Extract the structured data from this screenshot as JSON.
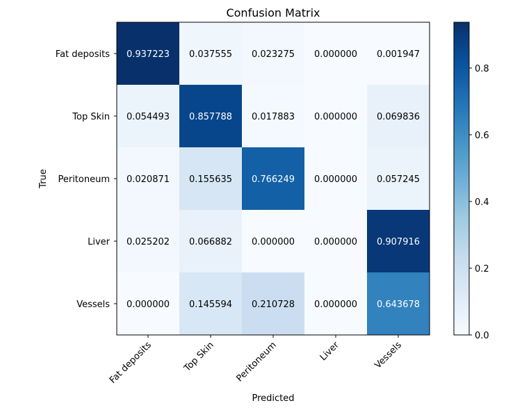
{
  "chart_data": {
    "type": "heatmap",
    "title": "Confusion Matrix",
    "xlabel": "Predicted",
    "ylabel": "True",
    "x_categories": [
      "Fat deposits",
      "Top Skin",
      "Peritoneum",
      "Liver",
      "Vessels"
    ],
    "y_categories": [
      "Fat deposits",
      "Top Skin",
      "Peritoneum",
      "Liver",
      "Vessels"
    ],
    "matrix": [
      [
        0.937223,
        0.037555,
        0.023275,
        0.0,
        0.001947
      ],
      [
        0.054493,
        0.857788,
        0.017883,
        0.0,
        0.069836
      ],
      [
        0.020871,
        0.155635,
        0.766249,
        0.0,
        0.057245
      ],
      [
        0.025202,
        0.066882,
        0.0,
        0.0,
        0.907916
      ],
      [
        0.0,
        0.145594,
        0.210728,
        0.0,
        0.643678
      ]
    ],
    "cell_labels": [
      [
        "0.937223",
        "0.037555",
        "0.023275",
        "0.000000",
        "0.001947"
      ],
      [
        "0.054493",
        "0.857788",
        "0.017883",
        "0.000000",
        "0.069836"
      ],
      [
        "0.020871",
        "0.155635",
        "0.766249",
        "0.000000",
        "0.057245"
      ],
      [
        "0.025202",
        "0.066882",
        "0.000000",
        "0.000000",
        "0.907916"
      ],
      [
        "0.000000",
        "0.145594",
        "0.210728",
        "0.000000",
        "0.643678"
      ]
    ],
    "colormap": "Blues",
    "colorbar": {
      "vmin": 0.0,
      "vmax": 0.937223,
      "ticks": [
        0.0,
        0.2,
        0.4,
        0.6,
        0.8
      ],
      "tick_labels": [
        "0.0",
        "0.2",
        "0.4",
        "0.6",
        "0.8"
      ]
    },
    "grid": false,
    "x_tick_rotation": 45
  }
}
